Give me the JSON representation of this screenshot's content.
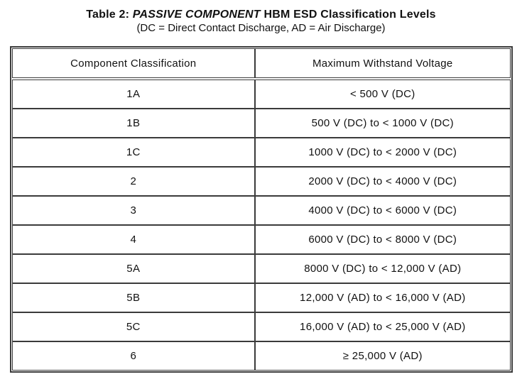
{
  "page": {
    "background_color": "#ffffff",
    "text_color": "#111111",
    "rule_color": "#3b3b3b"
  },
  "title": {
    "prefix": "Table 2: ",
    "emphasis": "PASSIVE COMPONENT",
    "suffix": " HBM ESD Classification Levels",
    "subtitle": "(DC = Direct Contact Discharge, AD = Air Discharge)"
  },
  "table": {
    "headers": [
      "Component Classification",
      "Maximum Withstand Voltage"
    ],
    "rows": [
      {
        "classification": "1A",
        "voltage": "< 500 V (DC)"
      },
      {
        "classification": "1B",
        "voltage": "500 V (DC) to < 1000 V (DC)"
      },
      {
        "classification": "1C",
        "voltage": "1000 V (DC) to < 2000 V (DC)"
      },
      {
        "classification": "2",
        "voltage": "2000 V (DC) to < 4000 V (DC)"
      },
      {
        "classification": "3",
        "voltage": "4000 V (DC) to < 6000 V (DC)"
      },
      {
        "classification": "4",
        "voltage": "6000 V (DC) to < 8000 V (DC)"
      },
      {
        "classification": "5A",
        "voltage": "8000 V (DC) to < 12,000 V (AD)"
      },
      {
        "classification": "5B",
        "voltage": "12,000 V (AD) to < 16,000 V (AD)"
      },
      {
        "classification": "5C",
        "voltage": "16,000 V (AD) to < 25,000 V (AD)"
      },
      {
        "classification": "6",
        "voltage": "≥ 25,000 V (AD)"
      }
    ]
  }
}
